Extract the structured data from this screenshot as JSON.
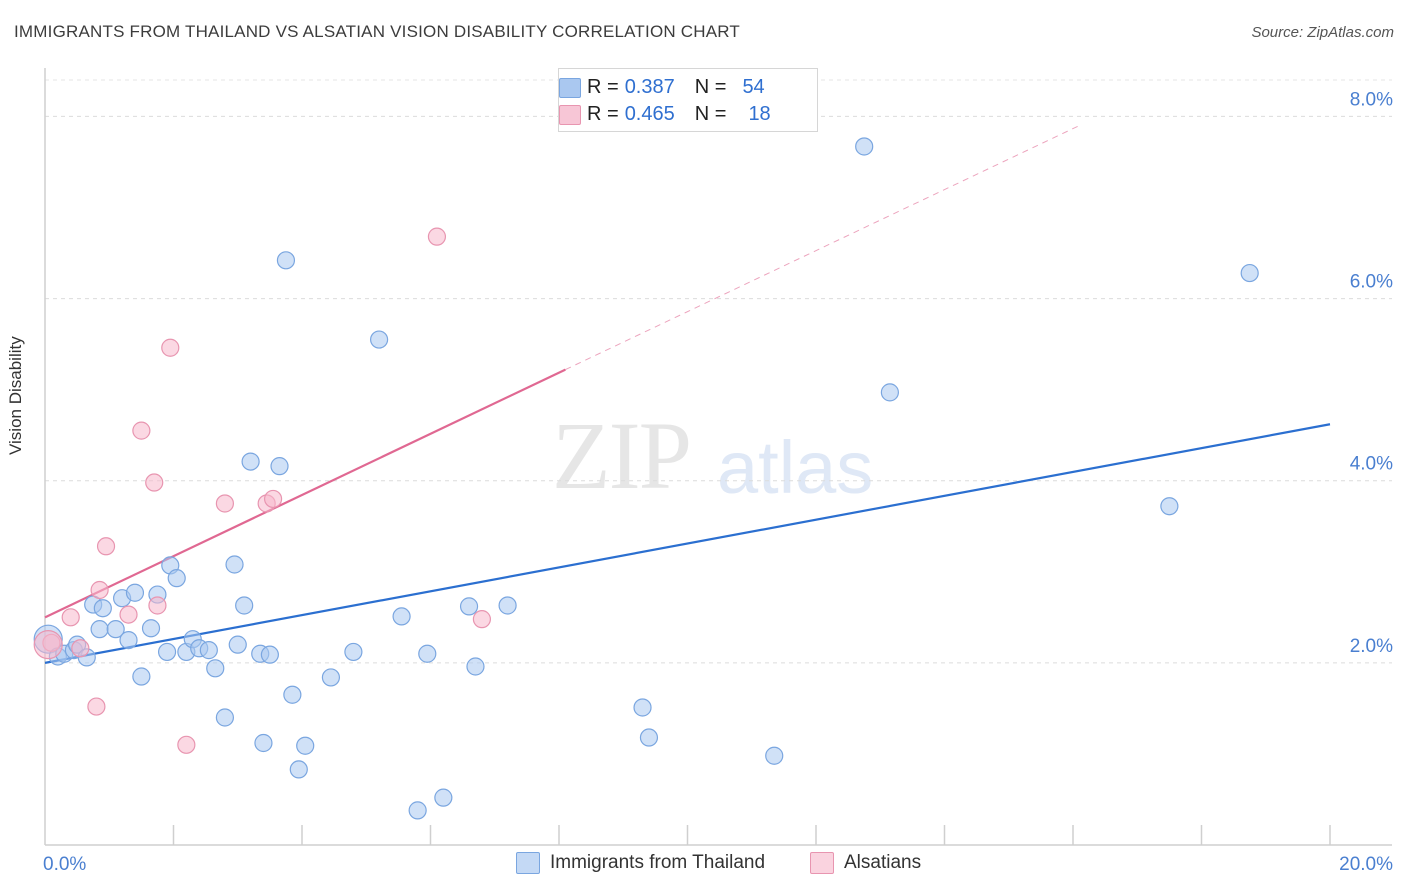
{
  "title": "IMMIGRANTS FROM THAILAND VS ALSATIAN VISION DISABILITY CORRELATION CHART",
  "source": "Source: ZipAtlas.com",
  "watermark": {
    "zip": "ZIP",
    "atlas": "atlas"
  },
  "stats": [
    {
      "r_label": "R =",
      "r_value": "0.387",
      "n_label": "N =",
      "n_value": "54",
      "color": "#aac8f0"
    },
    {
      "r_label": "R =",
      "r_value": "0.465",
      "n_label": "N =",
      "n_value": "18",
      "color": "#f7b8cc"
    }
  ],
  "legend": [
    {
      "label": "Immigrants from Thailand",
      "color": "#aac8f0"
    },
    {
      "label": "Alsatians",
      "color": "#f7b8cc"
    }
  ],
  "chart_data": {
    "type": "scatter",
    "title": "IMMIGRANTS FROM THAILAND VS ALSATIAN VISION DISABILITY CORRELATION CHART",
    "xlabel": "",
    "ylabel": "Vision Disability",
    "xlim": [
      0,
      20
    ],
    "ylim": [
      0,
      8.4
    ],
    "x_ticks": [
      {
        "value": 0,
        "label": "0.0%"
      },
      {
        "value": 20,
        "label": "20.0%"
      }
    ],
    "y_ticks": [
      {
        "value": 2,
        "label": "2.0%"
      },
      {
        "value": 4,
        "label": "4.0%"
      },
      {
        "value": 6,
        "label": "6.0%"
      },
      {
        "value": 8,
        "label": "8.0%"
      }
    ],
    "series": [
      {
        "name": "Immigrants from Thailand",
        "color": "#aac8f0",
        "stroke": "#7aa6e0",
        "trend": {
          "x0": 0,
          "y0": 2.0,
          "x1": 20,
          "y1": 4.62,
          "color": "#2b6fd0"
        },
        "points": [
          [
            0.05,
            2.26
          ],
          [
            0.2,
            2.07
          ],
          [
            0.3,
            2.1
          ],
          [
            0.45,
            2.14
          ],
          [
            0.5,
            2.2
          ],
          [
            0.65,
            2.06
          ],
          [
            0.75,
            2.64
          ],
          [
            0.9,
            2.6
          ],
          [
            0.85,
            2.37
          ],
          [
            1.1,
            2.37
          ],
          [
            1.2,
            2.71
          ],
          [
            1.3,
            2.25
          ],
          [
            1.4,
            2.77
          ],
          [
            1.5,
            1.85
          ],
          [
            1.65,
            2.38
          ],
          [
            1.75,
            2.75
          ],
          [
            1.9,
            2.12
          ],
          [
            1.95,
            3.07
          ],
          [
            2.05,
            2.93
          ],
          [
            2.2,
            2.12
          ],
          [
            2.3,
            2.26
          ],
          [
            2.4,
            2.16
          ],
          [
            2.55,
            2.14
          ],
          [
            2.65,
            1.94
          ],
          [
            2.8,
            1.4
          ],
          [
            2.95,
            3.08
          ],
          [
            3.0,
            2.2
          ],
          [
            3.1,
            2.63
          ],
          [
            3.2,
            4.21
          ],
          [
            3.35,
            2.1
          ],
          [
            3.4,
            1.12
          ],
          [
            3.5,
            2.09
          ],
          [
            3.65,
            4.16
          ],
          [
            3.75,
            6.42
          ],
          [
            3.85,
            1.65
          ],
          [
            3.95,
            0.83
          ],
          [
            4.05,
            1.09
          ],
          [
            4.45,
            1.84
          ],
          [
            4.8,
            2.12
          ],
          [
            5.2,
            5.55
          ],
          [
            5.55,
            2.51
          ],
          [
            5.8,
            0.38
          ],
          [
            5.95,
            2.1
          ],
          [
            6.2,
            0.52
          ],
          [
            6.6,
            2.62
          ],
          [
            6.7,
            1.96
          ],
          [
            7.2,
            2.63
          ],
          [
            9.3,
            1.51
          ],
          [
            9.4,
            1.18
          ],
          [
            11.35,
            0.98
          ],
          [
            12.75,
            7.67
          ],
          [
            13.15,
            4.97
          ],
          [
            17.5,
            3.72
          ],
          [
            18.75,
            6.28
          ]
        ]
      },
      {
        "name": "Alsatians",
        "color": "#f7b8cc",
        "stroke": "#e895b0",
        "trend": {
          "x0": 0,
          "y0": 2.5,
          "x1": 8.1,
          "y1": 5.22,
          "x_ext": 16.1,
          "y_ext": 7.9,
          "color": "#e06892"
        },
        "points": [
          [
            0.1,
            2.22
          ],
          [
            0.4,
            2.5
          ],
          [
            0.55,
            2.16
          ],
          [
            0.8,
            1.52
          ],
          [
            0.85,
            2.8
          ],
          [
            0.95,
            3.28
          ],
          [
            1.3,
            2.53
          ],
          [
            1.5,
            4.55
          ],
          [
            1.7,
            3.98
          ],
          [
            1.75,
            2.63
          ],
          [
            1.95,
            5.46
          ],
          [
            2.2,
            1.1
          ],
          [
            2.8,
            3.75
          ],
          [
            3.45,
            3.75
          ],
          [
            3.55,
            3.8
          ],
          [
            6.1,
            6.68
          ],
          [
            6.8,
            2.48
          ],
          [
            0.05,
            2.2
          ]
        ]
      }
    ]
  }
}
